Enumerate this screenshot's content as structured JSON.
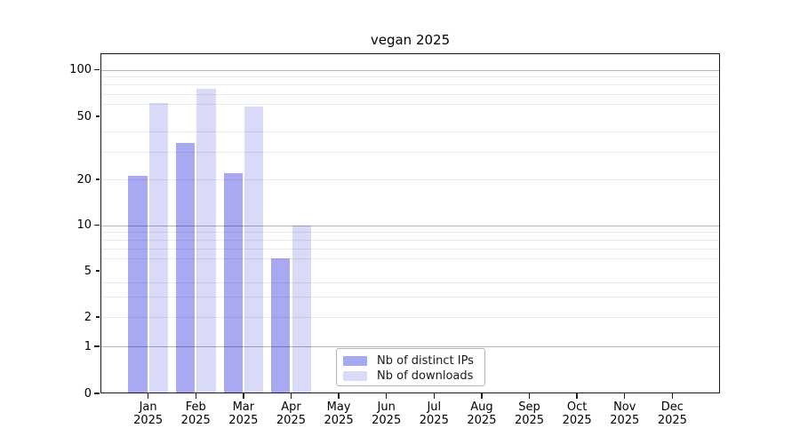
{
  "title": "vegan 2025",
  "legend": {
    "items": [
      {
        "label": "Nb of distinct IPs",
        "color": "#a9a9f1"
      },
      {
        "label": "Nb of downloads",
        "color": "#d9d9f8"
      }
    ]
  },
  "chart_data": {
    "type": "bar",
    "title": "vegan 2025",
    "categories": [
      "Jan",
      "Feb",
      "Mar",
      "Apr",
      "May",
      "Jun",
      "Jul",
      "Aug",
      "Sep",
      "Oct",
      "Nov",
      "Dec"
    ],
    "category_year": "2025",
    "series": [
      {
        "name": "Nb of distinct IPs",
        "color": "#a9a9f1",
        "values": [
          21,
          34,
          22,
          6,
          0,
          0,
          0,
          0,
          0,
          0,
          0,
          0
        ]
      },
      {
        "name": "Nb of downloads",
        "color": "#d9d9f8",
        "values": [
          61,
          75,
          58,
          10,
          0,
          0,
          0,
          0,
          0,
          0,
          0,
          0
        ]
      }
    ],
    "yscale": "log-with-zero",
    "ytick_values": [
      0,
      1,
      2,
      5,
      10,
      20,
      50,
      100
    ],
    "ytick_labels": [
      "0",
      "1",
      "2",
      "5",
      "10",
      "20",
      "50",
      "100"
    ],
    "ygrid_major": [
      1,
      10,
      100
    ],
    "ygrid_minor": [
      2,
      3,
      4,
      6,
      7,
      8,
      9,
      20,
      30,
      40,
      60,
      70,
      80,
      90
    ],
    "ylim": [
      0,
      128
    ],
    "grid": true,
    "legend_position": "lower center"
  }
}
